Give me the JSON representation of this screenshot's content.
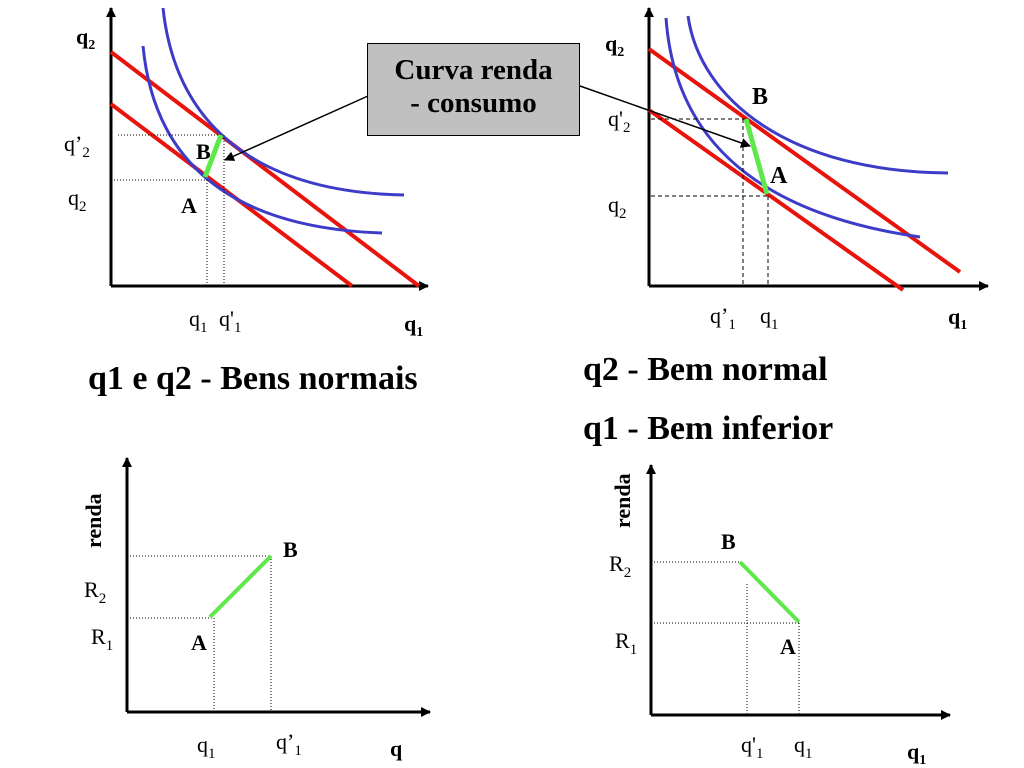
{
  "colors": {
    "budget_line": "#e8140c",
    "indifference_curve": "#3c3cc8",
    "income_consumption_path": "#5fe84a",
    "callout_fill": "#c0c0c0"
  },
  "callout": {
    "line1": "Curva renda",
    "line2": "- consumo"
  },
  "headings": {
    "top_left": "q1  e q2 - Bens normais",
    "top_right_line1": "q2 - Bem normal",
    "top_right_line2": "q1 - Bem inferior"
  },
  "panel_tl": {
    "y_axis_label": "q",
    "y_axis_sub": "2",
    "x_axis_label": "q",
    "x_axis_sub": "1",
    "y_tick_high": "q’",
    "y_tick_high_sub": "2",
    "y_tick_low": "q",
    "y_tick_low_sub": "2",
    "x_tick_a": "q",
    "x_tick_a_sub": "1",
    "x_tick_b": "q'",
    "x_tick_b_sub": "1",
    "point_a": "A",
    "point_b": "B"
  },
  "panel_tr": {
    "y_axis_label": "q",
    "y_axis_sub": "2",
    "x_axis_label": "q",
    "x_axis_sub": "1",
    "y_tick_high": "q'",
    "y_tick_high_sub": "2",
    "y_tick_low": "q",
    "y_tick_low_sub": "2",
    "x_tick_a": "q’",
    "x_tick_a_sub": "1",
    "x_tick_b": "q",
    "x_tick_b_sub": "1",
    "point_a": "A",
    "point_b": "B"
  },
  "panel_bl": {
    "y_axis_label": "renda",
    "x_axis_label": "q",
    "y_tick_high": "R",
    "y_tick_high_sub": "2",
    "y_tick_low": "R",
    "y_tick_low_sub": "1",
    "x_tick_a": "q",
    "x_tick_a_sub": "1",
    "x_tick_b": "q’",
    "x_tick_b_sub": "1",
    "point_a": "A",
    "point_b": "B"
  },
  "panel_br": {
    "y_axis_label": "renda",
    "x_axis_label": "q",
    "x_axis_sub": "1",
    "y_tick_high": "R",
    "y_tick_high_sub": "2",
    "y_tick_low": "R",
    "y_tick_low_sub": "1",
    "x_tick_a": "q'",
    "x_tick_a_sub": "1",
    "x_tick_b": "q",
    "x_tick_b_sub": "1",
    "point_a": "A",
    "point_b": "B"
  }
}
